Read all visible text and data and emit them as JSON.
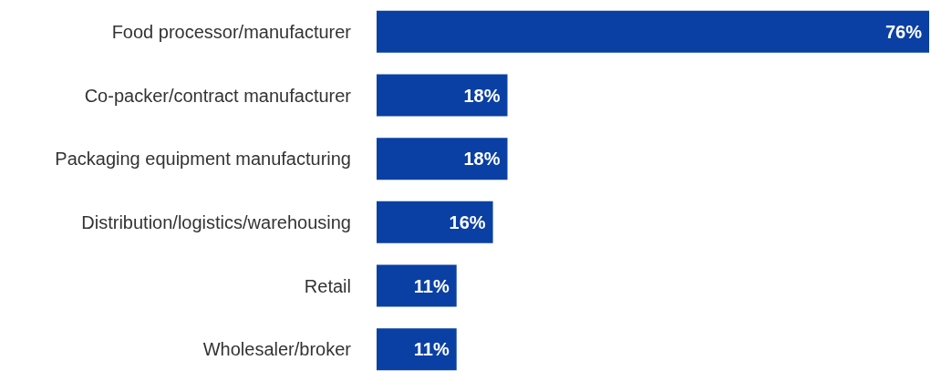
{
  "chart_data": {
    "type": "bar",
    "orientation": "horizontal",
    "categories": [
      "Food processor/manufacturer",
      "Co-packer/contract manufacturer",
      "Packaging equipment manufacturing",
      "Distribution/logistics/warehousing",
      "Retail",
      "Wholesaler/broker"
    ],
    "values": [
      76,
      18,
      18,
      16,
      11,
      11
    ],
    "value_labels": [
      "76%",
      "18%",
      "18%",
      "16%",
      "11%",
      "11%"
    ],
    "color": "#0a40a4"
  }
}
